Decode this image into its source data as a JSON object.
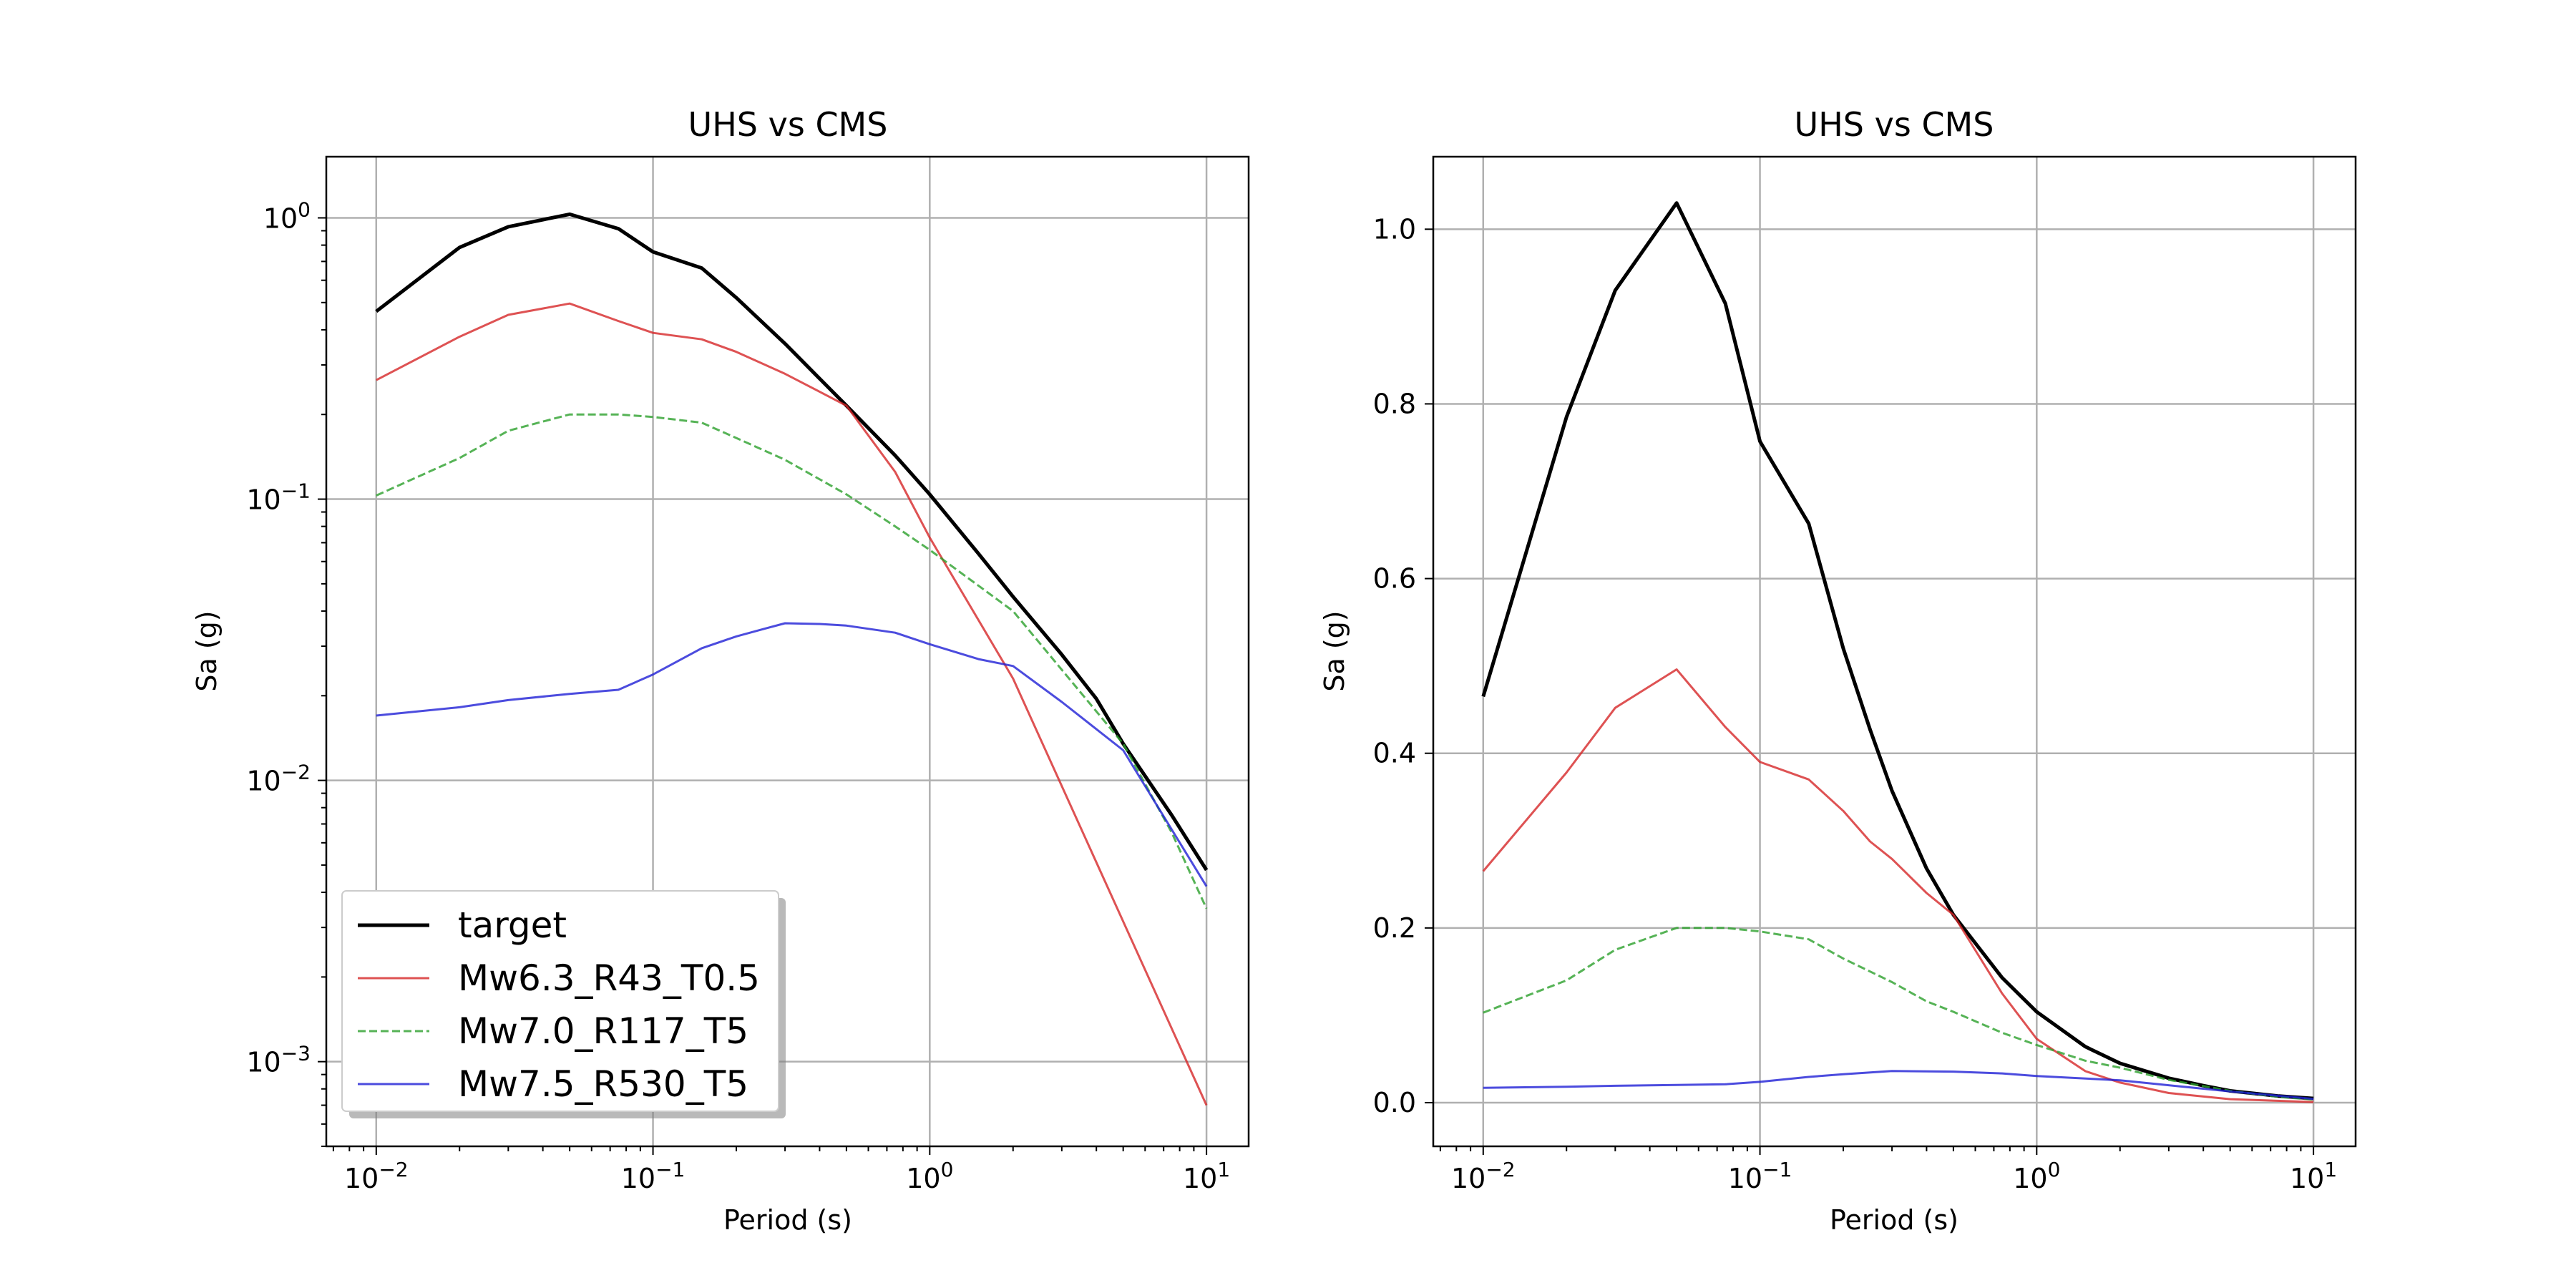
{
  "chart_data": [
    {
      "type": "line",
      "title": "UHS vs CMS",
      "xlabel": "Period (s)",
      "ylabel": "Sa (g)",
      "xscale": "log",
      "yscale": "log",
      "xlim": [
        0.0066,
        14.2
      ],
      "ylim": [
        0.0005,
        1.65
      ],
      "x_ticks": [
        {
          "value": 0.01,
          "label": "10",
          "exp": "−2"
        },
        {
          "value": 0.1,
          "label": "10",
          "exp": "−1"
        },
        {
          "value": 1,
          "label": "10",
          "exp": "0"
        },
        {
          "value": 10,
          "label": "10",
          "exp": "1"
        }
      ],
      "y_ticks": [
        {
          "value": 0.001,
          "label": "10",
          "exp": "−3"
        },
        {
          "value": 0.01,
          "label": "10",
          "exp": "−2"
        },
        {
          "value": 0.1,
          "label": "10",
          "exp": "−1"
        },
        {
          "value": 1,
          "label": "10",
          "exp": "0"
        }
      ],
      "grid": true,
      "legend": "lower-left",
      "series": [
        {
          "name": "target",
          "color": "#000000",
          "style": "solid",
          "width": 5,
          "x": [
            0.01,
            0.02,
            0.03,
            0.05,
            0.075,
            0.1,
            0.15,
            0.2,
            0.3,
            0.5,
            0.75,
            1,
            1.5,
            2,
            3,
            4,
            5,
            7.5,
            10
          ],
          "y": [
            0.465,
            0.785,
            0.93,
            1.03,
            0.915,
            0.757,
            0.663,
            0.52,
            0.357,
            0.215,
            0.143,
            0.104,
            0.064,
            0.045,
            0.028,
            0.0195,
            0.0135,
            0.0075,
            0.0048
          ]
        },
        {
          "name": "Mw6.3_R43_T0.5",
          "color": "#d62728",
          "style": "solid",
          "width": 3,
          "x": [
            0.01,
            0.02,
            0.03,
            0.05,
            0.075,
            0.1,
            0.15,
            0.2,
            0.3,
            0.5,
            0.75,
            1,
            2,
            10
          ],
          "y": [
            0.265,
            0.378,
            0.452,
            0.496,
            0.43,
            0.39,
            0.37,
            0.334,
            0.279,
            0.215,
            0.125,
            0.073,
            0.023,
            0.0007
          ]
        },
        {
          "name": "Mw7.0_R117_T5",
          "color": "#2ca02c",
          "style": "dashed",
          "width": 3,
          "x": [
            0.01,
            0.02,
            0.03,
            0.05,
            0.075,
            0.1,
            0.15,
            0.2,
            0.3,
            0.5,
            0.75,
            1,
            2,
            5,
            7.5,
            10
          ],
          "y": [
            0.103,
            0.14,
            0.175,
            0.2,
            0.2,
            0.196,
            0.187,
            0.165,
            0.138,
            0.104,
            0.08,
            0.066,
            0.04,
            0.0135,
            0.0065,
            0.0035
          ]
        },
        {
          "name": "Mw7.5_R530_T5",
          "color": "#1f1fd6",
          "style": "solid",
          "width": 3,
          "x": [
            0.01,
            0.02,
            0.03,
            0.05,
            0.075,
            0.1,
            0.15,
            0.2,
            0.25,
            0.3,
            0.4,
            0.5,
            0.75,
            1,
            1.5,
            2,
            3,
            5,
            10
          ],
          "y": [
            0.017,
            0.0182,
            0.0193,
            0.0203,
            0.021,
            0.0238,
            0.0295,
            0.0325,
            0.0345,
            0.0362,
            0.036,
            0.0355,
            0.0335,
            0.0305,
            0.027,
            0.0255,
            0.019,
            0.0128,
            0.0042
          ]
        }
      ]
    },
    {
      "type": "line",
      "title": "UHS vs CMS",
      "xlabel": "Period (s)",
      "ylabel": "Sa (g)",
      "xscale": "log",
      "yscale": "linear",
      "xlim": [
        0.0066,
        14.2
      ],
      "ylim": [
        -0.05,
        1.083
      ],
      "x_ticks": [
        {
          "value": 0.01,
          "label": "10",
          "exp": "−2"
        },
        {
          "value": 0.1,
          "label": "10",
          "exp": "−1"
        },
        {
          "value": 1,
          "label": "10",
          "exp": "0"
        },
        {
          "value": 10,
          "label": "10",
          "exp": "1"
        }
      ],
      "y_ticks": [
        {
          "value": 0.0,
          "label": "0.0"
        },
        {
          "value": 0.2,
          "label": "0.2"
        },
        {
          "value": 0.4,
          "label": "0.4"
        },
        {
          "value": 0.6,
          "label": "0.6"
        },
        {
          "value": 0.8,
          "label": "0.8"
        },
        {
          "value": 1.0,
          "label": "1.0"
        }
      ],
      "grid": true,
      "legend": "none",
      "series": [
        {
          "color": "#000000",
          "style": "solid",
          "width": 5,
          "x": [
            0.01,
            0.02,
            0.03,
            0.05,
            0.075,
            0.1,
            0.15,
            0.2,
            0.25,
            0.3,
            0.4,
            0.5,
            0.75,
            1,
            1.5,
            2,
            3,
            4,
            5,
            7.5,
            10
          ],
          "y": [
            0.465,
            0.785,
            0.93,
            1.03,
            0.915,
            0.757,
            0.663,
            0.52,
            0.427,
            0.357,
            0.268,
            0.215,
            0.143,
            0.104,
            0.064,
            0.045,
            0.028,
            0.0195,
            0.0135,
            0.0075,
            0.0048
          ]
        },
        {
          "color": "#d62728",
          "style": "solid",
          "width": 3,
          "x": [
            0.01,
            0.02,
            0.03,
            0.05,
            0.075,
            0.1,
            0.15,
            0.2,
            0.25,
            0.3,
            0.4,
            0.5,
            0.75,
            1,
            1.5,
            2,
            3,
            5,
            10
          ],
          "y": [
            0.265,
            0.378,
            0.452,
            0.496,
            0.43,
            0.39,
            0.37,
            0.334,
            0.299,
            0.279,
            0.24,
            0.215,
            0.125,
            0.073,
            0.036,
            0.023,
            0.011,
            0.004,
            0.0007
          ]
        },
        {
          "color": "#2ca02c",
          "style": "dashed",
          "width": 3,
          "x": [
            0.01,
            0.02,
            0.03,
            0.05,
            0.075,
            0.1,
            0.15,
            0.2,
            0.3,
            0.4,
            0.5,
            0.75,
            1,
            1.5,
            2,
            3,
            5,
            7.5,
            10
          ],
          "y": [
            0.103,
            0.14,
            0.175,
            0.2,
            0.2,
            0.196,
            0.187,
            0.165,
            0.138,
            0.116,
            0.104,
            0.08,
            0.066,
            0.048,
            0.04,
            0.026,
            0.0135,
            0.0065,
            0.0035
          ]
        },
        {
          "color": "#1f1fd6",
          "style": "solid",
          "width": 3,
          "x": [
            0.01,
            0.02,
            0.03,
            0.05,
            0.075,
            0.1,
            0.15,
            0.2,
            0.3,
            0.5,
            0.75,
            1,
            2,
            5,
            10
          ],
          "y": [
            0.017,
            0.0182,
            0.0193,
            0.0203,
            0.021,
            0.0238,
            0.0295,
            0.0325,
            0.0362,
            0.0355,
            0.0335,
            0.0305,
            0.0255,
            0.0128,
            0.0042
          ]
        }
      ]
    }
  ]
}
